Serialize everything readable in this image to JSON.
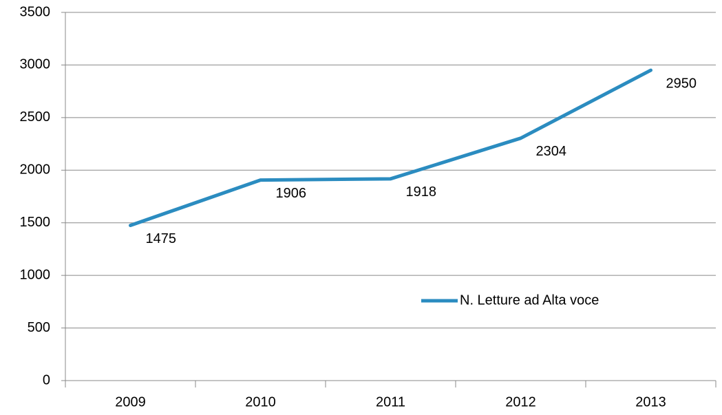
{
  "chart_data": {
    "type": "line",
    "categories": [
      "2009",
      "2010",
      "2011",
      "2012",
      "2013"
    ],
    "series": [
      {
        "name": "N. Letture ad Alta voce",
        "color": "#2b8cc0",
        "values": [
          1475,
          1906,
          1918,
          2304,
          2950
        ]
      }
    ],
    "ylim": [
      0,
      3500
    ],
    "yticks": [
      0,
      500,
      1000,
      1500,
      2000,
      2500,
      3000,
      3500
    ],
    "grid": true
  }
}
